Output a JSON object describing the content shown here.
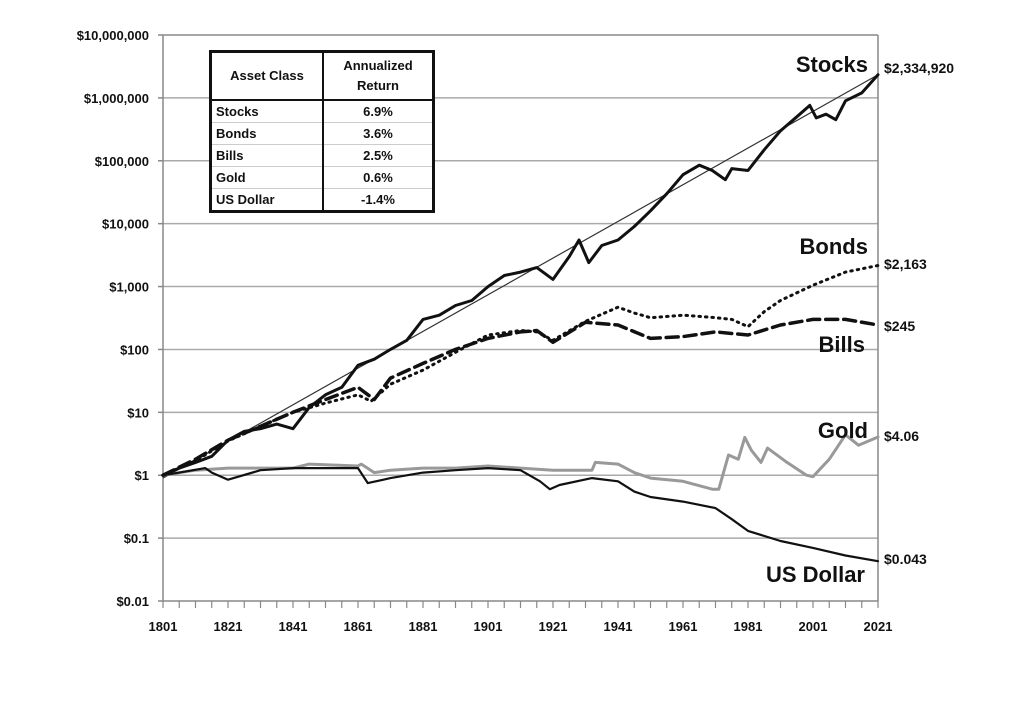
{
  "chart_data": {
    "type": "line",
    "title": "",
    "xlabel": "",
    "ylabel": "",
    "y_scale": "log",
    "ylim": [
      0.01,
      10000000
    ],
    "xlim": [
      1801,
      2021
    ],
    "grid": "horizontal",
    "x_ticks": [
      "1801",
      "1821",
      "1841",
      "1861",
      "1881",
      "1901",
      "1921",
      "1941",
      "1961",
      "1981",
      "2001",
      "2021"
    ],
    "y_ticks": [
      {
        "value": 10000000,
        "label": "$10,000,000"
      },
      {
        "value": 1000000,
        "label": "$1,000,000"
      },
      {
        "value": 100000,
        "label": "$100,000"
      },
      {
        "value": 10000,
        "label": "$10,000"
      },
      {
        "value": 1000,
        "label": "$1,000"
      },
      {
        "value": 100,
        "label": "$100"
      },
      {
        "value": 10,
        "label": "$10"
      },
      {
        "value": 1,
        "label": "$1"
      },
      {
        "value": 0.1,
        "label": "$0.1"
      },
      {
        "value": 0.01,
        "label": "$0.01"
      }
    ],
    "series": [
      {
        "name": "Stocks",
        "style": "solid-thick",
        "color": "#111111",
        "end_label": "$2,334,920",
        "x": [
          1801,
          1806,
          1811,
          1816,
          1821,
          1826,
          1831,
          1836,
          1841,
          1846,
          1851,
          1856,
          1861,
          1866,
          1871,
          1876,
          1881,
          1886,
          1891,
          1896,
          1901,
          1906,
          1911,
          1916,
          1921,
          1926,
          1929,
          1932,
          1936,
          1941,
          1946,
          1951,
          1956,
          1961,
          1966,
          1970,
          1974,
          1976,
          1981,
          1986,
          1991,
          1996,
          2000,
          2002,
          2005,
          2008,
          2011,
          2016,
          2021
        ],
        "y": [
          1,
          1.3,
          1.6,
          2.0,
          3.6,
          5.0,
          5.5,
          6.5,
          5.5,
          12,
          19,
          25,
          56,
          70,
          100,
          140,
          300,
          350,
          500,
          600,
          1000,
          1500,
          1700,
          2000,
          1300,
          3000,
          5500,
          2400,
          4500,
          5500,
          9000,
          16000,
          30000,
          60000,
          85000,
          70000,
          50000,
          75000,
          70000,
          150000,
          300000,
          500000,
          760000,
          480000,
          550000,
          450000,
          900000,
          1200000,
          2334920
        ]
      },
      {
        "name": "Bonds",
        "style": "dotted",
        "color": "#111111",
        "end_label": "$2,163",
        "x": [
          1801,
          1811,
          1821,
          1831,
          1841,
          1851,
          1861,
          1865,
          1871,
          1881,
          1891,
          1901,
          1911,
          1916,
          1921,
          1931,
          1941,
          1946,
          1951,
          1961,
          1971,
          1976,
          1981,
          1986,
          1991,
          2001,
          2011,
          2021
        ],
        "y": [
          1,
          1.7,
          3.5,
          6,
          10,
          14,
          19,
          15,
          28,
          47,
          90,
          170,
          200,
          190,
          140,
          280,
          470,
          380,
          320,
          350,
          320,
          300,
          230,
          400,
          600,
          1050,
          1700,
          2163
        ]
      },
      {
        "name": "Bills",
        "style": "dashed",
        "color": "#111111",
        "end_label": "$245",
        "x": [
          1801,
          1811,
          1821,
          1831,
          1841,
          1851,
          1861,
          1866,
          1871,
          1881,
          1891,
          1901,
          1911,
          1916,
          1921,
          1931,
          1941,
          1951,
          1961,
          1971,
          1981,
          1991,
          2001,
          2011,
          2021
        ],
        "y": [
          1,
          1.8,
          3.6,
          6,
          10,
          16,
          25,
          16,
          35,
          60,
          100,
          150,
          190,
          200,
          130,
          270,
          245,
          150,
          160,
          190,
          170,
          245,
          300,
          300,
          245
        ]
      },
      {
        "name": "Gold",
        "style": "solid",
        "color": "#999999",
        "end_label": "$4.06",
        "x": [
          1801,
          1811,
          1821,
          1841,
          1846,
          1861,
          1862,
          1866,
          1871,
          1881,
          1891,
          1901,
          1911,
          1921,
          1933,
          1934,
          1941,
          1946,
          1951,
          1961,
          1970,
          1972,
          1975,
          1978,
          1980,
          1982,
          1985,
          1987,
          1993,
          1999,
          2001,
          2006,
          2011,
          2015,
          2021
        ],
        "y": [
          1,
          1.2,
          1.3,
          1.3,
          1.5,
          1.4,
          1.5,
          1.1,
          1.2,
          1.3,
          1.3,
          1.4,
          1.3,
          1.2,
          1.2,
          1.6,
          1.5,
          1.1,
          0.9,
          0.8,
          0.6,
          0.6,
          2.1,
          1.8,
          4.0,
          2.5,
          1.6,
          2.7,
          1.6,
          1.0,
          0.95,
          1.8,
          4.4,
          3.0,
          4.06
        ]
      },
      {
        "name": "US Dollar",
        "style": "solid",
        "color": "#111111",
        "end_label": "$0.043",
        "x": [
          1801,
          1806,
          1814,
          1816,
          1821,
          1831,
          1841,
          1851,
          1861,
          1864,
          1871,
          1881,
          1891,
          1901,
          1911,
          1917,
          1920,
          1923,
          1933,
          1941,
          1946,
          1951,
          1961,
          1971,
          1976,
          1981,
          1991,
          2001,
          2011,
          2021
        ],
        "y": [
          1,
          1.1,
          1.3,
          1.1,
          0.85,
          1.2,
          1.3,
          1.3,
          1.3,
          0.75,
          0.9,
          1.1,
          1.2,
          1.3,
          1.2,
          0.8,
          0.6,
          0.7,
          0.9,
          0.8,
          0.55,
          0.45,
          0.38,
          0.3,
          0.2,
          0.13,
          0.09,
          0.07,
          0.053,
          0.043
        ]
      }
    ],
    "trendline": {
      "x": [
        1801,
        2021
      ],
      "y": [
        0.9,
        2334920
      ]
    },
    "table": {
      "headers": [
        "Asset Class",
        "Annualized Return"
      ],
      "rows": [
        [
          "Stocks",
          "6.9%"
        ],
        [
          "Bonds",
          "3.6%"
        ],
        [
          "Bills",
          "2.5%"
        ],
        [
          "Gold",
          "0.6%"
        ],
        [
          "US Dollar",
          "-1.4%"
        ]
      ]
    }
  }
}
